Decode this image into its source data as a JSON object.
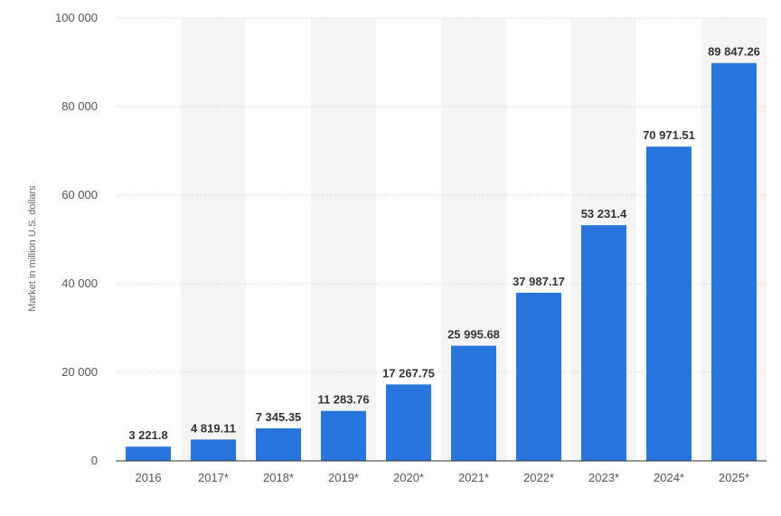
{
  "chart_data": {
    "type": "bar",
    "categories": [
      "2016",
      "2017*",
      "2018*",
      "2019*",
      "2020*",
      "2021*",
      "2022*",
      "2023*",
      "2024*",
      "2025*"
    ],
    "values": [
      3221.8,
      4819.11,
      7345.35,
      11283.76,
      17267.75,
      25995.68,
      37987.17,
      53231.4,
      70971.51,
      89847.26
    ],
    "value_labels": [
      "3 221.8",
      "4 819.11",
      "7 345.35",
      "11 283.76",
      "17 267.75",
      "25 995.68",
      "37 987.17",
      "53 231.4",
      "70 971.51",
      "89 847.26"
    ],
    "ylabel": "Market in million U.S. dollars",
    "xlabel": "",
    "ylim": [
      0,
      100000
    ],
    "yticks": [
      0,
      20000,
      40000,
      60000,
      80000,
      100000
    ],
    "ytick_labels": [
      "0",
      "20 000",
      "40 000",
      "60 000",
      "80 000",
      "100 000"
    ],
    "grid": true,
    "colors": {
      "bar": "#2876dd",
      "band": "#f5f5f5",
      "grid": "#cfcfcf",
      "axis": "#333333"
    }
  }
}
